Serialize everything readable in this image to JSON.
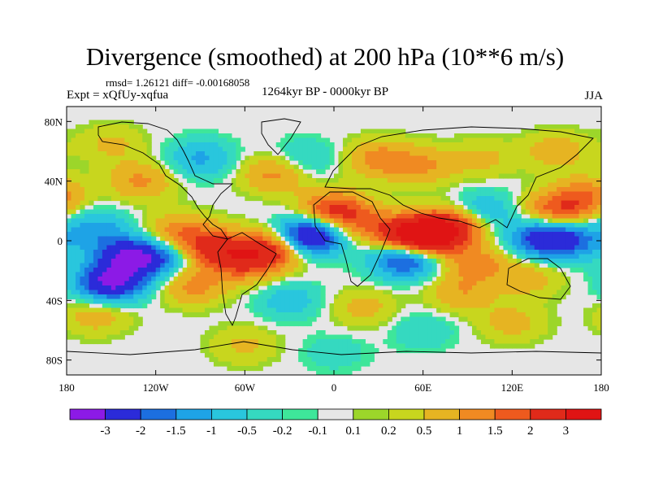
{
  "header": {
    "title": "Divergence (smoothed) at 200 hPa (10**6 m/s)",
    "stats": "rmsd= 1.26121 diff= -0.00168058",
    "experiment": "Expt = xQfUy-xqfua",
    "period": "1264kyr BP - 0000kyr BP",
    "season": "JJA"
  },
  "map": {
    "lat_labels": [
      "80N",
      "40N",
      "0",
      "40S",
      "80S"
    ],
    "lat_values": [
      80,
      40,
      0,
      -40,
      -80
    ],
    "lon_labels": [
      "180",
      "120W",
      "60W",
      "0",
      "60E",
      "120E",
      "180"
    ],
    "lon_values": [
      -180,
      -120,
      -60,
      0,
      60,
      120,
      180
    ]
  },
  "colorbar": {
    "labels": [
      "-3",
      "-2",
      "-1.5",
      "-1",
      "-0.5",
      "-0.2",
      "-0.1",
      "0.1",
      "0.2",
      "0.5",
      "1",
      "1.5",
      "2",
      "3"
    ],
    "colors": [
      "#8c1ae6",
      "#2b2bd9",
      "#1c6fe0",
      "#1ea3e6",
      "#29c6dd",
      "#35d9c0",
      "#3ee69a",
      "#e6e6e6",
      "#9cd62a",
      "#c8d61e",
      "#e6b422",
      "#f08a22",
      "#ee5a1e",
      "#e02a1a",
      "#e01414"
    ]
  },
  "anomalies": [
    {
      "lon": -160,
      "lat": 8,
      "v": -1.2
    },
    {
      "lon": -140,
      "lat": -10,
      "v": -2.2
    },
    {
      "lon": -150,
      "lat": -28,
      "v": -3.2
    },
    {
      "lon": -120,
      "lat": -12,
      "v": -1.8
    },
    {
      "lon": -105,
      "lat": 5,
      "v": 1.4
    },
    {
      "lon": -80,
      "lat": -5,
      "v": 2.1
    },
    {
      "lon": -95,
      "lat": -30,
      "v": 1.2
    },
    {
      "lon": -60,
      "lat": -15,
      "v": 1.6
    },
    {
      "lon": -40,
      "lat": -5,
      "v": 2.4
    },
    {
      "lon": -17,
      "lat": 3,
      "v": -3.6
    },
    {
      "lon": 0,
      "lat": 20,
      "v": 2.3
    },
    {
      "lon": 25,
      "lat": 10,
      "v": 1.1
    },
    {
      "lon": 50,
      "lat": 2,
      "v": 1.6
    },
    {
      "lon": 48,
      "lat": -12,
      "v": -2.6
    },
    {
      "lon": 62,
      "lat": 3,
      "v": 3.2
    },
    {
      "lon": 80,
      "lat": 10,
      "v": 2.2
    },
    {
      "lon": 95,
      "lat": -15,
      "v": 1.2
    },
    {
      "lon": 85,
      "lat": -35,
      "v": 0.9
    },
    {
      "lon": 100,
      "lat": 20,
      "v": -1.1
    },
    {
      "lon": 140,
      "lat": 2,
      "v": -2.3
    },
    {
      "lon": 160,
      "lat": 0,
      "v": -1.5
    },
    {
      "lon": 150,
      "lat": 20,
      "v": 1.8
    },
    {
      "lon": 170,
      "lat": 30,
      "v": 1.3
    },
    {
      "lon": 130,
      "lat": -25,
      "v": 0.8
    },
    {
      "lon": -130,
      "lat": 40,
      "v": 1.1
    },
    {
      "lon": -90,
      "lat": 55,
      "v": -1.1
    },
    {
      "lon": -40,
      "lat": 45,
      "v": 1.2
    },
    {
      "lon": -20,
      "lat": 55,
      "v": -0.7
    },
    {
      "lon": 30,
      "lat": 55,
      "v": 1.2
    },
    {
      "lon": 60,
      "lat": 50,
      "v": 1.0
    },
    {
      "lon": 100,
      "lat": 55,
      "v": 0.6
    },
    {
      "lon": 150,
      "lat": 60,
      "v": 0.8
    },
    {
      "lon": -150,
      "lat": 65,
      "v": 0.6
    },
    {
      "lon": 20,
      "lat": -45,
      "v": 0.7
    },
    {
      "lon": -30,
      "lat": -40,
      "v": -0.8
    },
    {
      "lon": -160,
      "lat": -50,
      "v": 0.8
    },
    {
      "lon": 120,
      "lat": -55,
      "v": 0.7
    },
    {
      "lon": 60,
      "lat": -60,
      "v": -0.5
    },
    {
      "lon": -60,
      "lat": -70,
      "v": 0.6
    },
    {
      "lon": 0,
      "lat": -75,
      "v": -0.4
    }
  ]
}
